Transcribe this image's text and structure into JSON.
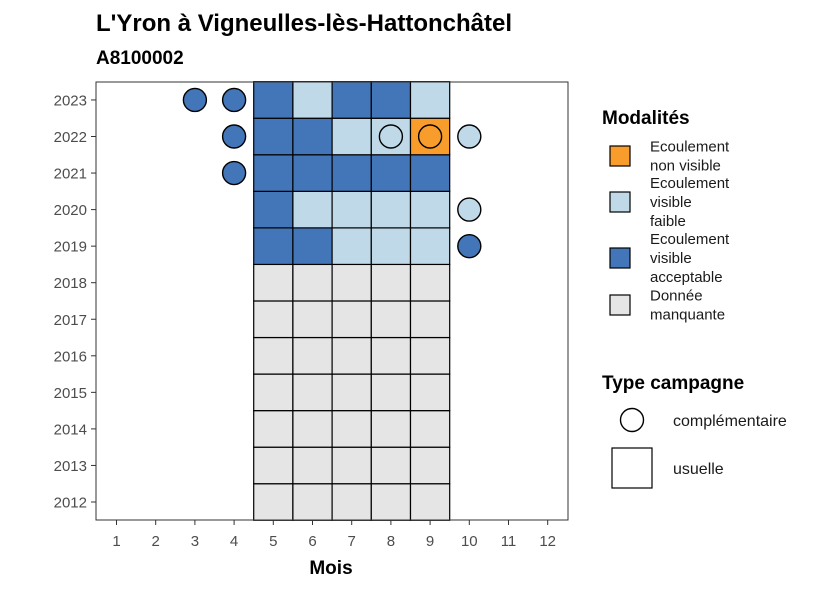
{
  "title": "L'Yron à Vigneulles-lès-Hattonchâtel",
  "subtitle": "A8100002",
  "chart_data": {
    "type": "heatmap",
    "xlabel": "Mois",
    "ylabel": "",
    "x_ticks": [
      "1",
      "2",
      "3",
      "4",
      "5",
      "6",
      "7",
      "8",
      "9",
      "10",
      "11",
      "12"
    ],
    "y_ticks": [
      "2012",
      "2013",
      "2014",
      "2015",
      "2016",
      "2017",
      "2018",
      "2019",
      "2020",
      "2021",
      "2022",
      "2023"
    ],
    "grid": false,
    "legend_placement": "right",
    "modalites": [
      {
        "key": "nonvisible",
        "label_lines": [
          "Ecoulement",
          "non visible"
        ],
        "color": "#F89C2C"
      },
      {
        "key": "faible",
        "label_lines": [
          "Ecoulement",
          "visible",
          "faible"
        ],
        "color": "#BFD9E8"
      },
      {
        "key": "acceptable",
        "label_lines": [
          "Ecoulement",
          "visible",
          "acceptable"
        ],
        "color": "#4376B8"
      },
      {
        "key": "manquante",
        "label_lines": [
          "Donnée",
          "manquante"
        ],
        "color": "#E5E5E5"
      }
    ],
    "legend_modalites_title": "Modalités",
    "legend_campagne_title": "Type campagne",
    "campagne_types": [
      {
        "key": "complementaire",
        "label": "complémentaire",
        "shape": "circle"
      },
      {
        "key": "usuelle",
        "label": "usuelle",
        "shape": "square"
      }
    ],
    "usuelle": [
      {
        "year": 2012,
        "month": 5,
        "modalite": "manquante"
      },
      {
        "year": 2012,
        "month": 6,
        "modalite": "manquante"
      },
      {
        "year": 2012,
        "month": 7,
        "modalite": "manquante"
      },
      {
        "year": 2012,
        "month": 8,
        "modalite": "manquante"
      },
      {
        "year": 2012,
        "month": 9,
        "modalite": "manquante"
      },
      {
        "year": 2013,
        "month": 5,
        "modalite": "manquante"
      },
      {
        "year": 2013,
        "month": 6,
        "modalite": "manquante"
      },
      {
        "year": 2013,
        "month": 7,
        "modalite": "manquante"
      },
      {
        "year": 2013,
        "month": 8,
        "modalite": "manquante"
      },
      {
        "year": 2013,
        "month": 9,
        "modalite": "manquante"
      },
      {
        "year": 2014,
        "month": 5,
        "modalite": "manquante"
      },
      {
        "year": 2014,
        "month": 6,
        "modalite": "manquante"
      },
      {
        "year": 2014,
        "month": 7,
        "modalite": "manquante"
      },
      {
        "year": 2014,
        "month": 8,
        "modalite": "manquante"
      },
      {
        "year": 2014,
        "month": 9,
        "modalite": "manquante"
      },
      {
        "year": 2015,
        "month": 5,
        "modalite": "manquante"
      },
      {
        "year": 2015,
        "month": 6,
        "modalite": "manquante"
      },
      {
        "year": 2015,
        "month": 7,
        "modalite": "manquante"
      },
      {
        "year": 2015,
        "month": 8,
        "modalite": "manquante"
      },
      {
        "year": 2015,
        "month": 9,
        "modalite": "manquante"
      },
      {
        "year": 2016,
        "month": 5,
        "modalite": "manquante"
      },
      {
        "year": 2016,
        "month": 6,
        "modalite": "manquante"
      },
      {
        "year": 2016,
        "month": 7,
        "modalite": "manquante"
      },
      {
        "year": 2016,
        "month": 8,
        "modalite": "manquante"
      },
      {
        "year": 2016,
        "month": 9,
        "modalite": "manquante"
      },
      {
        "year": 2017,
        "month": 5,
        "modalite": "manquante"
      },
      {
        "year": 2017,
        "month": 6,
        "modalite": "manquante"
      },
      {
        "year": 2017,
        "month": 7,
        "modalite": "manquante"
      },
      {
        "year": 2017,
        "month": 8,
        "modalite": "manquante"
      },
      {
        "year": 2017,
        "month": 9,
        "modalite": "manquante"
      },
      {
        "year": 2018,
        "month": 5,
        "modalite": "manquante"
      },
      {
        "year": 2018,
        "month": 6,
        "modalite": "manquante"
      },
      {
        "year": 2018,
        "month": 7,
        "modalite": "manquante"
      },
      {
        "year": 2018,
        "month": 8,
        "modalite": "manquante"
      },
      {
        "year": 2018,
        "month": 9,
        "modalite": "manquante"
      },
      {
        "year": 2019,
        "month": 5,
        "modalite": "acceptable"
      },
      {
        "year": 2019,
        "month": 6,
        "modalite": "acceptable"
      },
      {
        "year": 2019,
        "month": 7,
        "modalite": "faible"
      },
      {
        "year": 2019,
        "month": 8,
        "modalite": "faible"
      },
      {
        "year": 2019,
        "month": 9,
        "modalite": "faible"
      },
      {
        "year": 2020,
        "month": 5,
        "modalite": "acceptable"
      },
      {
        "year": 2020,
        "month": 6,
        "modalite": "faible"
      },
      {
        "year": 2020,
        "month": 7,
        "modalite": "faible"
      },
      {
        "year": 2020,
        "month": 8,
        "modalite": "faible"
      },
      {
        "year": 2020,
        "month": 9,
        "modalite": "faible"
      },
      {
        "year": 2021,
        "month": 5,
        "modalite": "acceptable"
      },
      {
        "year": 2021,
        "month": 6,
        "modalite": "acceptable"
      },
      {
        "year": 2021,
        "month": 7,
        "modalite": "acceptable"
      },
      {
        "year": 2021,
        "month": 8,
        "modalite": "acceptable"
      },
      {
        "year": 2021,
        "month": 9,
        "modalite": "acceptable"
      },
      {
        "year": 2022,
        "month": 5,
        "modalite": "acceptable"
      },
      {
        "year": 2022,
        "month": 6,
        "modalite": "acceptable"
      },
      {
        "year": 2022,
        "month": 7,
        "modalite": "faible"
      },
      {
        "year": 2022,
        "month": 8,
        "modalite": "faible"
      },
      {
        "year": 2022,
        "month": 9,
        "modalite": "nonvisible"
      },
      {
        "year": 2023,
        "month": 5,
        "modalite": "acceptable"
      },
      {
        "year": 2023,
        "month": 6,
        "modalite": "faible"
      },
      {
        "year": 2023,
        "month": 7,
        "modalite": "acceptable"
      },
      {
        "year": 2023,
        "month": 8,
        "modalite": "acceptable"
      },
      {
        "year": 2023,
        "month": 9,
        "modalite": "faible"
      }
    ],
    "complementaire": [
      {
        "year": 2023,
        "month": 3,
        "modalite": "acceptable"
      },
      {
        "year": 2023,
        "month": 4,
        "modalite": "acceptable"
      },
      {
        "year": 2022,
        "month": 4,
        "modalite": "acceptable"
      },
      {
        "year": 2022,
        "month": 8,
        "modalite": "faible"
      },
      {
        "year": 2022,
        "month": 9,
        "modalite": "nonvisible"
      },
      {
        "year": 2022,
        "month": 10,
        "modalite": "faible"
      },
      {
        "year": 2021,
        "month": 4,
        "modalite": "acceptable"
      },
      {
        "year": 2020,
        "month": 10,
        "modalite": "faible"
      },
      {
        "year": 2019,
        "month": 10,
        "modalite": "acceptable"
      }
    ]
  }
}
